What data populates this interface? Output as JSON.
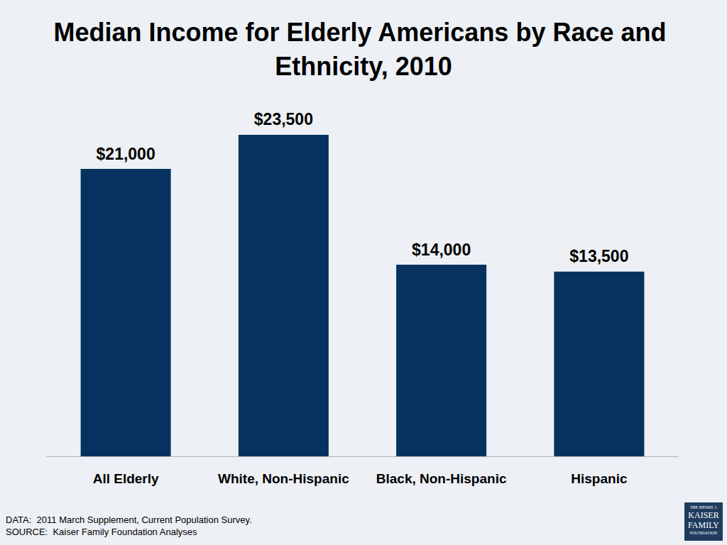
{
  "chart_data": {
    "type": "bar",
    "title": "Median Income for Elderly Americans by Race and Ethnicity, 2010",
    "categories": [
      "All Elderly",
      "White, Non-Hispanic",
      "Black, Non-Hispanic",
      "Hispanic"
    ],
    "values": [
      21000,
      23500,
      14000,
      13500
    ],
    "value_labels": [
      "$21,000",
      "$23,500",
      "$14,000",
      "$13,500"
    ],
    "data_labels": true,
    "color": "#05325f",
    "ylim": [
      0,
      25000
    ],
    "grid": false,
    "tick_labels": "x",
    "notes": [
      "DATA:  2011 March Supplement, Current Population Survey.",
      "SOURCE:  Kaiser Family Foundation Analyses"
    ],
    "logo": [
      "THE HENRY J.",
      "KAISER",
      "FAMILY",
      "FOUNDATION"
    ]
  }
}
